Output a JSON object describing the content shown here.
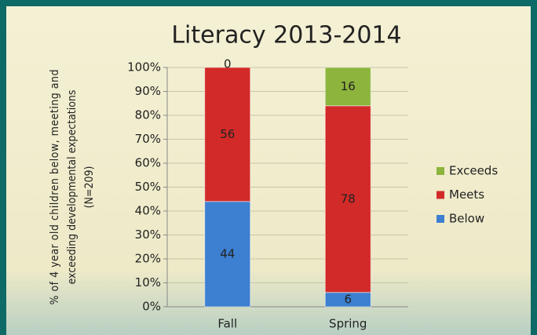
{
  "chart_data": {
    "type": "stacked_bar",
    "title": "Literacy 2013-2014",
    "y_label": [
      "% of 4 year old children below, meeting and",
      "exceeding developmental expectations",
      "(N=209)"
    ],
    "categories": [
      "Fall",
      "Spring"
    ],
    "series": [
      {
        "name": "Below",
        "color": "#3d7fd0",
        "values": [
          44,
          6
        ]
      },
      {
        "name": "Meets",
        "color": "#d22a28",
        "values": [
          56,
          78
        ]
      },
      {
        "name": "Exceeds",
        "color": "#8db43c",
        "values": [
          0,
          16
        ]
      }
    ],
    "ylim": [
      0,
      100
    ],
    "yticks": [
      {
        "value": 0,
        "label": "0%"
      },
      {
        "value": 10,
        "label": "10%"
      },
      {
        "value": 20,
        "label": "20%"
      },
      {
        "value": 30,
        "label": "30%"
      },
      {
        "value": 40,
        "label": "40%"
      },
      {
        "value": 50,
        "label": "50%"
      },
      {
        "value": 60,
        "label": "60%"
      },
      {
        "value": 70,
        "label": "70%"
      },
      {
        "value": 80,
        "label": "80%"
      },
      {
        "value": 90,
        "label": "90%"
      },
      {
        "value": 100,
        "label": "100%"
      }
    ],
    "grid": true,
    "legend": "right"
  }
}
